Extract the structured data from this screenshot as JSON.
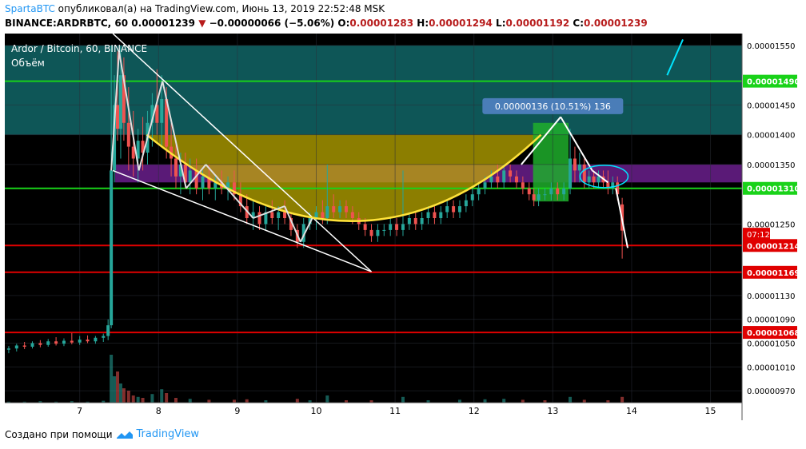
{
  "header": {
    "author": "SpartaBTC",
    "published_text": "опубликовал(а) на TradingView.com, Июнь 13, 2019 22:52:48 MSK",
    "symbol": "BINANCE:ARDRBTC, 60",
    "last_price": "0.00001239",
    "change": "−0.00000066 (−5.06%)",
    "o_label": "O:",
    "o_value": "0.00001283",
    "h_label": "H:",
    "h_value": "0.00001294",
    "l_label": "L:",
    "l_value": "0.00001192",
    "c_label": "C:",
    "c_value": "0.00001239"
  },
  "legend": {
    "title": "Ardor / Bitcoin, 60, BINANCE",
    "volume": "Объём"
  },
  "footer": {
    "text": "Создано при помощи",
    "brand": "TradingView"
  },
  "colors": {
    "chart_bg": "#000000",
    "up": "#26a69a",
    "down": "#ef5350",
    "teal_zone": "#0f5f60",
    "purple_zone": "#6a1e8c",
    "yellow": "#ffe23a",
    "green_level": "#19d219",
    "red_level": "#e00000",
    "cyan": "#00e5ff",
    "white": "#ffffff"
  },
  "chart_data": {
    "type": "candlestick",
    "x_tick_labels": [
      "7",
      "8",
      "9",
      "10",
      "11",
      "12",
      "13",
      "14",
      "15"
    ],
    "x_ticks": [
      7,
      8,
      9,
      10,
      11,
      12,
      13,
      14,
      15
    ],
    "xlim": [
      6.05,
      15.4
    ],
    "ylim": [
      9.5e-06,
      1.57e-05
    ],
    "y_tick_labels": [
      "0.00001550",
      "0.00001450",
      "0.00001400",
      "0.00001350",
      "0.00001250",
      "0.00001130",
      "0.00001090",
      "0.00001050",
      "0.00001010",
      "0.00000970"
    ],
    "y_ticks": [
      1.55e-05,
      1.45e-05,
      1.4e-05,
      1.35e-05,
      1.25e-05,
      1.13e-05,
      1.09e-05,
      1.05e-05,
      1.01e-05,
      9.7e-06
    ],
    "price_labels": [
      {
        "text": "0.00001490",
        "value": 1.49e-05,
        "color": "#19d219"
      },
      {
        "text": "0.00001310",
        "value": 1.31e-05,
        "color": "#19d219"
      },
      {
        "text": "0.00001214",
        "value": 1.214e-05,
        "color": "#e00000"
      },
      {
        "text": "0.00001169",
        "value": 1.169e-05,
        "color": "#e00000"
      },
      {
        "text": "0.00001068",
        "value": 1.068e-05,
        "color": "#e00000"
      }
    ],
    "countdown": {
      "text": "07:12",
      "value": 1.233e-05
    },
    "horizontal_lines": [
      {
        "value": 1.49e-05,
        "color": "#19d219"
      },
      {
        "value": 1.31e-05,
        "color": "#19d219"
      },
      {
        "value": 1.214e-05,
        "color": "#e00000"
      },
      {
        "value": 1.169e-05,
        "color": "#e00000"
      },
      {
        "value": 1.068e-05,
        "color": "#e00000"
      }
    ],
    "zones": [
      {
        "name": "teal",
        "x0": 6.05,
        "x1": 15.4,
        "y_low": 1.4e-05,
        "y_high": 1.55e-05,
        "color": "#0f5f60"
      },
      {
        "name": "purple",
        "x0": 7.45,
        "x1": 13.4,
        "y_low": 1.32e-05,
        "y_high": 1.35e-05,
        "color": "#6a1e8c"
      },
      {
        "name": "purple-right",
        "x0": 13.4,
        "x1": 15.4,
        "y_low": 1.32e-05,
        "y_high": 1.35e-05,
        "color": "#6a1e8c"
      }
    ],
    "measure_label": "0.00000136 (10.51%) 136",
    "ohlc": [
      {
        "t": 6.1,
        "o": 1.039e-05,
        "h": 1.045e-05,
        "l": 1.033e-05,
        "c": 1.041e-05
      },
      {
        "t": 6.2,
        "o": 1.041e-05,
        "h": 1.049e-05,
        "l": 1.036e-05,
        "c": 1.046e-05
      },
      {
        "t": 6.3,
        "o": 1.046e-05,
        "h": 1.052e-05,
        "l": 1.04e-05,
        "c": 1.044e-05
      },
      {
        "t": 6.4,
        "o": 1.044e-05,
        "h": 1.053e-05,
        "l": 1.041e-05,
        "c": 1.05e-05
      },
      {
        "t": 6.5,
        "o": 1.05e-05,
        "h": 1.055e-05,
        "l": 1.043e-05,
        "c": 1.047e-05
      },
      {
        "t": 6.6,
        "o": 1.047e-05,
        "h": 1.057e-05,
        "l": 1.044e-05,
        "c": 1.053e-05
      },
      {
        "t": 6.7,
        "o": 1.053e-05,
        "h": 1.06e-05,
        "l": 1.046e-05,
        "c": 1.049e-05
      },
      {
        "t": 6.8,
        "o": 1.049e-05,
        "h": 1.058e-05,
        "l": 1.045e-05,
        "c": 1.054e-05
      },
      {
        "t": 6.9,
        "o": 1.054e-05,
        "h": 1.067e-05,
        "l": 1.048e-05,
        "c": 1.051e-05
      },
      {
        "t": 7.0,
        "o": 1.051e-05,
        "h": 1.062e-05,
        "l": 1.047e-05,
        "c": 1.056e-05
      },
      {
        "t": 7.1,
        "o": 1.056e-05,
        "h": 1.063e-05,
        "l": 1.05e-05,
        "c": 1.053e-05
      },
      {
        "t": 7.2,
        "o": 1.053e-05,
        "h": 1.062e-05,
        "l": 1.049e-05,
        "c": 1.059e-05
      },
      {
        "t": 7.3,
        "o": 1.059e-05,
        "h": 1.066e-05,
        "l": 1.052e-05,
        "c": 1.062e-05
      },
      {
        "t": 7.36,
        "o": 1.062e-05,
        "h": 1.09e-05,
        "l": 1.055e-05,
        "c": 1.08e-05
      },
      {
        "t": 7.4,
        "o": 1.08e-05,
        "h": 1.55e-05,
        "l": 1.075e-05,
        "c": 1.34e-05
      },
      {
        "t": 7.44,
        "o": 1.34e-05,
        "h": 1.5e-05,
        "l": 1.32e-05,
        "c": 1.45e-05
      },
      {
        "t": 7.48,
        "o": 1.45e-05,
        "h": 1.54e-05,
        "l": 1.39e-05,
        "c": 1.41e-05
      },
      {
        "t": 7.52,
        "o": 1.41e-05,
        "h": 1.55e-05,
        "l": 1.36e-05,
        "c": 1.5e-05
      },
      {
        "t": 7.56,
        "o": 1.5e-05,
        "h": 1.53e-05,
        "l": 1.39e-05,
        "c": 1.42e-05
      },
      {
        "t": 7.62,
        "o": 1.42e-05,
        "h": 1.48e-05,
        "l": 1.34e-05,
        "c": 1.38e-05
      },
      {
        "t": 7.68,
        "o": 1.38e-05,
        "h": 1.44e-05,
        "l": 1.33e-05,
        "c": 1.36e-05
      },
      {
        "t": 7.74,
        "o": 1.36e-05,
        "h": 1.41e-05,
        "l": 1.32e-05,
        "c": 1.39e-05
      },
      {
        "t": 7.8,
        "o": 1.39e-05,
        "h": 1.43e-05,
        "l": 1.34e-05,
        "c": 1.37e-05
      },
      {
        "t": 7.86,
        "o": 1.37e-05,
        "h": 1.44e-05,
        "l": 1.35e-05,
        "c": 1.42e-05
      },
      {
        "t": 7.92,
        "o": 1.42e-05,
        "h": 1.47e-05,
        "l": 1.38e-05,
        "c": 1.45e-05
      },
      {
        "t": 7.98,
        "o": 1.45e-05,
        "h": 1.51e-05,
        "l": 1.4e-05,
        "c": 1.42e-05
      },
      {
        "t": 8.04,
        "o": 1.42e-05,
        "h": 1.5e-05,
        "l": 1.38e-05,
        "c": 1.46e-05
      },
      {
        "t": 8.1,
        "o": 1.46e-05,
        "h": 1.48e-05,
        "l": 1.36e-05,
        "c": 1.38e-05
      },
      {
        "t": 8.16,
        "o": 1.38e-05,
        "h": 1.42e-05,
        "l": 1.33e-05,
        "c": 1.36e-05
      },
      {
        "t": 8.22,
        "o": 1.36e-05,
        "h": 1.39e-05,
        "l": 1.31e-05,
        "c": 1.33e-05
      },
      {
        "t": 8.28,
        "o": 1.33e-05,
        "h": 1.37e-05,
        "l": 1.3e-05,
        "c": 1.35e-05
      },
      {
        "t": 8.34,
        "o": 1.35e-05,
        "h": 1.37e-05,
        "l": 1.31e-05,
        "c": 1.32e-05
      },
      {
        "t": 8.4,
        "o": 1.32e-05,
        "h": 1.36e-05,
        "l": 1.3e-05,
        "c": 1.34e-05
      },
      {
        "t": 8.48,
        "o": 1.34e-05,
        "h": 1.36e-05,
        "l": 1.3e-05,
        "c": 1.31e-05
      },
      {
        "t": 8.56,
        "o": 1.31e-05,
        "h": 1.34e-05,
        "l": 1.29e-05,
        "c": 1.33e-05
      },
      {
        "t": 8.64,
        "o": 1.33e-05,
        "h": 1.35e-05,
        "l": 1.3e-05,
        "c": 1.31e-05
      },
      {
        "t": 8.72,
        "o": 1.31e-05,
        "h": 1.33e-05,
        "l": 1.29e-05,
        "c": 1.32e-05
      },
      {
        "t": 8.8,
        "o": 1.32e-05,
        "h": 1.34e-05,
        "l": 1.3e-05,
        "c": 1.31e-05
      },
      {
        "t": 8.88,
        "o": 1.31e-05,
        "h": 1.33e-05,
        "l": 1.29e-05,
        "c": 1.32e-05
      },
      {
        "t": 8.96,
        "o": 1.32e-05,
        "h": 1.34e-05,
        "l": 1.29e-05,
        "c": 1.3e-05
      },
      {
        "t": 9.04,
        "o": 1.3e-05,
        "h": 1.32e-05,
        "l": 1.27e-05,
        "c": 1.28e-05
      },
      {
        "t": 9.12,
        "o": 1.28e-05,
        "h": 1.3e-05,
        "l": 1.25e-05,
        "c": 1.26e-05
      },
      {
        "t": 9.2,
        "o": 1.26e-05,
        "h": 1.29e-05,
        "l": 1.24e-05,
        "c": 1.27e-05
      },
      {
        "t": 9.28,
        "o": 1.27e-05,
        "h": 1.28e-05,
        "l": 1.24e-05,
        "c": 1.25e-05
      },
      {
        "t": 9.36,
        "o": 1.25e-05,
        "h": 1.28e-05,
        "l": 1.24e-05,
        "c": 1.27e-05
      },
      {
        "t": 9.44,
        "o": 1.27e-05,
        "h": 1.29e-05,
        "l": 1.25e-05,
        "c": 1.26e-05
      },
      {
        "t": 9.52,
        "o": 1.26e-05,
        "h": 1.28e-05,
        "l": 1.24e-05,
        "c": 1.27e-05
      },
      {
        "t": 9.6,
        "o": 1.27e-05,
        "h": 1.29e-05,
        "l": 1.25e-05,
        "c": 1.26e-05
      },
      {
        "t": 9.68,
        "o": 1.26e-05,
        "h": 1.27e-05,
        "l": 1.23e-05,
        "c": 1.24e-05
      },
      {
        "t": 9.76,
        "o": 1.24e-05,
        "h": 1.25e-05,
        "l": 1.21e-05,
        "c": 1.22e-05
      },
      {
        "t": 9.84,
        "o": 1.22e-05,
        "h": 1.26e-05,
        "l": 1.21e-05,
        "c": 1.25e-05
      },
      {
        "t": 9.92,
        "o": 1.25e-05,
        "h": 1.27e-05,
        "l": 1.24e-05,
        "c": 1.26e-05
      },
      {
        "t": 10.0,
        "o": 1.26e-05,
        "h": 1.28e-05,
        "l": 1.24e-05,
        "c": 1.27e-05
      },
      {
        "t": 10.08,
        "o": 1.27e-05,
        "h": 1.29e-05,
        "l": 1.25e-05,
        "c": 1.26e-05
      },
      {
        "t": 10.14,
        "o": 1.26e-05,
        "h": 1.35e-05,
        "l": 1.25e-05,
        "c": 1.28e-05
      },
      {
        "t": 10.22,
        "o": 1.28e-05,
        "h": 1.3e-05,
        "l": 1.26e-05,
        "c": 1.27e-05
      },
      {
        "t": 10.3,
        "o": 1.27e-05,
        "h": 1.29e-05,
        "l": 1.26e-05,
        "c": 1.28e-05
      },
      {
        "t": 10.38,
        "o": 1.28e-05,
        "h": 1.29e-05,
        "l": 1.26e-05,
        "c": 1.27e-05
      },
      {
        "t": 10.46,
        "o": 1.27e-05,
        "h": 1.28e-05,
        "l": 1.25e-05,
        "c": 1.26e-05
      },
      {
        "t": 10.54,
        "o": 1.26e-05,
        "h": 1.27e-05,
        "l": 1.24e-05,
        "c": 1.25e-05
      },
      {
        "t": 10.62,
        "o": 1.25e-05,
        "h": 1.26e-05,
        "l": 1.23e-05,
        "c": 1.24e-05
      },
      {
        "t": 10.7,
        "o": 1.24e-05,
        "h": 1.25e-05,
        "l": 1.22e-05,
        "c": 1.23e-05
      },
      {
        "t": 10.78,
        "o": 1.23e-05,
        "h": 1.25e-05,
        "l": 1.22e-05,
        "c": 1.24e-05
      },
      {
        "t": 10.86,
        "o": 1.24e-05,
        "h": 1.25e-05,
        "l": 1.23e-05,
        "c": 1.24e-05
      },
      {
        "t": 10.94,
        "o": 1.24e-05,
        "h": 1.26e-05,
        "l": 1.23e-05,
        "c": 1.25e-05
      },
      {
        "t": 11.02,
        "o": 1.25e-05,
        "h": 1.26e-05,
        "l": 1.23e-05,
        "c": 1.24e-05
      },
      {
        "t": 11.1,
        "o": 1.24e-05,
        "h": 1.34e-05,
        "l": 1.23e-05,
        "c": 1.25e-05
      },
      {
        "t": 11.18,
        "o": 1.25e-05,
        "h": 1.27e-05,
        "l": 1.24e-05,
        "c": 1.26e-05
      },
      {
        "t": 11.26,
        "o": 1.26e-05,
        "h": 1.27e-05,
        "l": 1.24e-05,
        "c": 1.25e-05
      },
      {
        "t": 11.34,
        "o": 1.25e-05,
        "h": 1.27e-05,
        "l": 1.24e-05,
        "c": 1.26e-05
      },
      {
        "t": 11.42,
        "o": 1.26e-05,
        "h": 1.28e-05,
        "l": 1.25e-05,
        "c": 1.27e-05
      },
      {
        "t": 11.5,
        "o": 1.27e-05,
        "h": 1.28e-05,
        "l": 1.25e-05,
        "c": 1.26e-05
      },
      {
        "t": 11.58,
        "o": 1.26e-05,
        "h": 1.28e-05,
        "l": 1.25e-05,
        "c": 1.27e-05
      },
      {
        "t": 11.66,
        "o": 1.27e-05,
        "h": 1.29e-05,
        "l": 1.26e-05,
        "c": 1.28e-05
      },
      {
        "t": 11.74,
        "o": 1.28e-05,
        "h": 1.29e-05,
        "l": 1.26e-05,
        "c": 1.27e-05
      },
      {
        "t": 11.82,
        "o": 1.27e-05,
        "h": 1.29e-05,
        "l": 1.26e-05,
        "c": 1.28e-05
      },
      {
        "t": 11.9,
        "o": 1.28e-05,
        "h": 1.3e-05,
        "l": 1.27e-05,
        "c": 1.29e-05
      },
      {
        "t": 11.98,
        "o": 1.29e-05,
        "h": 1.31e-05,
        "l": 1.28e-05,
        "c": 1.3e-05
      },
      {
        "t": 12.06,
        "o": 1.3e-05,
        "h": 1.32e-05,
        "l": 1.29e-05,
        "c": 1.31e-05
      },
      {
        "t": 12.14,
        "o": 1.31e-05,
        "h": 1.33e-05,
        "l": 1.3e-05,
        "c": 1.32e-05
      },
      {
        "t": 12.22,
        "o": 1.32e-05,
        "h": 1.34e-05,
        "l": 1.31e-05,
        "c": 1.33e-05
      },
      {
        "t": 12.3,
        "o": 1.33e-05,
        "h": 1.35e-05,
        "l": 1.31e-05,
        "c": 1.32e-05
      },
      {
        "t": 12.38,
        "o": 1.32e-05,
        "h": 1.35e-05,
        "l": 1.31e-05,
        "c": 1.34e-05
      },
      {
        "t": 12.46,
        "o": 1.34e-05,
        "h": 1.35e-05,
        "l": 1.32e-05,
        "c": 1.33e-05
      },
      {
        "t": 12.54,
        "o": 1.33e-05,
        "h": 1.34e-05,
        "l": 1.31e-05,
        "c": 1.32e-05
      },
      {
        "t": 12.62,
        "o": 1.32e-05,
        "h": 1.33e-05,
        "l": 1.3e-05,
        "c": 1.31e-05
      },
      {
        "t": 12.7,
        "o": 1.31e-05,
        "h": 1.32e-05,
        "l": 1.29e-05,
        "c": 1.3e-05
      },
      {
        "t": 12.76,
        "o": 1.3e-05,
        "h": 1.31e-05,
        "l": 1.28e-05,
        "c": 1.29e-05
      },
      {
        "t": 12.82,
        "o": 1.29e-05,
        "h": 1.31e-05,
        "l": 1.28e-05,
        "c": 1.3e-05
      },
      {
        "t": 12.9,
        "o": 1.3e-05,
        "h": 1.31e-05,
        "l": 1.29e-05,
        "c": 1.3e-05
      },
      {
        "t": 12.98,
        "o": 1.3e-05,
        "h": 1.32e-05,
        "l": 1.29e-05,
        "c": 1.31e-05
      },
      {
        "t": 13.06,
        "o": 1.31e-05,
        "h": 1.32e-05,
        "l": 1.29e-05,
        "c": 1.3e-05
      },
      {
        "t": 13.14,
        "o": 1.3e-05,
        "h": 1.32e-05,
        "l": 1.29e-05,
        "c": 1.31e-05
      },
      {
        "t": 13.22,
        "o": 1.31e-05,
        "h": 1.41e-05,
        "l": 1.3e-05,
        "c": 1.36e-05
      },
      {
        "t": 13.28,
        "o": 1.36e-05,
        "h": 1.38e-05,
        "l": 1.32e-05,
        "c": 1.34e-05
      },
      {
        "t": 13.34,
        "o": 1.34e-05,
        "h": 1.37e-05,
        "l": 1.32e-05,
        "c": 1.35e-05
      },
      {
        "t": 13.4,
        "o": 1.35e-05,
        "h": 1.36e-05,
        "l": 1.31e-05,
        "c": 1.32e-05
      },
      {
        "t": 13.46,
        "o": 1.32e-05,
        "h": 1.34e-05,
        "l": 1.31e-05,
        "c": 1.33e-05
      },
      {
        "t": 13.52,
        "o": 1.33e-05,
        "h": 1.34e-05,
        "l": 1.31e-05,
        "c": 1.32e-05
      },
      {
        "t": 13.58,
        "o": 1.32e-05,
        "h": 1.34e-05,
        "l": 1.31e-05,
        "c": 1.33e-05
      },
      {
        "t": 13.64,
        "o": 1.33e-05,
        "h": 1.34e-05,
        "l": 1.31e-05,
        "c": 1.32e-05
      },
      {
        "t": 13.7,
        "o": 1.32e-05,
        "h": 1.34e-05,
        "l": 1.3e-05,
        "c": 1.31e-05
      },
      {
        "t": 13.76,
        "o": 1.31e-05,
        "h": 1.33e-05,
        "l": 1.3e-05,
        "c": 1.32e-05
      },
      {
        "t": 13.82,
        "o": 1.32e-05,
        "h": 1.33e-05,
        "l": 1.29e-05,
        "c": 1.3e-05
      },
      {
        "t": 13.88,
        "o": 1.283e-05,
        "h": 1.294e-05,
        "l": 1.192e-05,
        "c": 1.239e-05
      }
    ],
    "volume": [
      {
        "t": 6.1,
        "v": 0.02
      },
      {
        "t": 6.3,
        "v": 0.02
      },
      {
        "t": 6.5,
        "v": 0.03
      },
      {
        "t": 6.7,
        "v": 0.02
      },
      {
        "t": 6.9,
        "v": 0.03
      },
      {
        "t": 7.1,
        "v": 0.02
      },
      {
        "t": 7.3,
        "v": 0.04
      },
      {
        "t": 7.4,
        "v": 1.0,
        "up": true
      },
      {
        "t": 7.44,
        "v": 0.55,
        "up": true
      },
      {
        "t": 7.48,
        "v": 0.65,
        "up": false
      },
      {
        "t": 7.52,
        "v": 0.4,
        "up": true
      },
      {
        "t": 7.56,
        "v": 0.3,
        "up": false
      },
      {
        "t": 7.62,
        "v": 0.25,
        "up": false
      },
      {
        "t": 7.68,
        "v": 0.15,
        "up": false
      },
      {
        "t": 7.74,
        "v": 0.12,
        "up": true
      },
      {
        "t": 7.8,
        "v": 0.1,
        "up": false
      },
      {
        "t": 7.92,
        "v": 0.18,
        "up": true
      },
      {
        "t": 8.04,
        "v": 0.28,
        "up": true
      },
      {
        "t": 8.1,
        "v": 0.2,
        "up": false
      },
      {
        "t": 8.22,
        "v": 0.1,
        "up": false
      },
      {
        "t": 8.4,
        "v": 0.08,
        "up": true
      },
      {
        "t": 8.64,
        "v": 0.06,
        "up": false
      },
      {
        "t": 8.96,
        "v": 0.06,
        "up": false
      },
      {
        "t": 9.12,
        "v": 0.07,
        "up": false
      },
      {
        "t": 9.36,
        "v": 0.05,
        "up": true
      },
      {
        "t": 9.76,
        "v": 0.08,
        "up": false
      },
      {
        "t": 9.92,
        "v": 0.05,
        "up": true
      },
      {
        "t": 10.14,
        "v": 0.15,
        "up": true
      },
      {
        "t": 10.38,
        "v": 0.05,
        "up": false
      },
      {
        "t": 10.7,
        "v": 0.05,
        "up": false
      },
      {
        "t": 11.1,
        "v": 0.12,
        "up": true
      },
      {
        "t": 11.42,
        "v": 0.05,
        "up": true
      },
      {
        "t": 11.82,
        "v": 0.06,
        "up": true
      },
      {
        "t": 12.14,
        "v": 0.07,
        "up": true
      },
      {
        "t": 12.38,
        "v": 0.08,
        "up": true
      },
      {
        "t": 12.62,
        "v": 0.06,
        "up": false
      },
      {
        "t": 12.9,
        "v": 0.05,
        "up": false
      },
      {
        "t": 13.22,
        "v": 0.12,
        "up": true
      },
      {
        "t": 13.4,
        "v": 0.06,
        "up": false
      },
      {
        "t": 13.7,
        "v": 0.05,
        "up": false
      },
      {
        "t": 13.88,
        "v": 0.12,
        "up": false
      }
    ]
  }
}
